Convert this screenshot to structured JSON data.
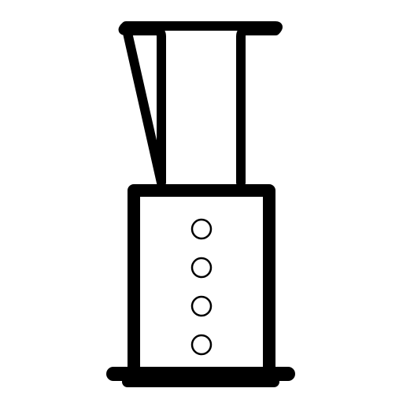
{
  "icon": {
    "name": "aeropress-icon",
    "stroke_color": "#000000",
    "background_color": "#ffffff",
    "vent_hole_count": 4
  }
}
